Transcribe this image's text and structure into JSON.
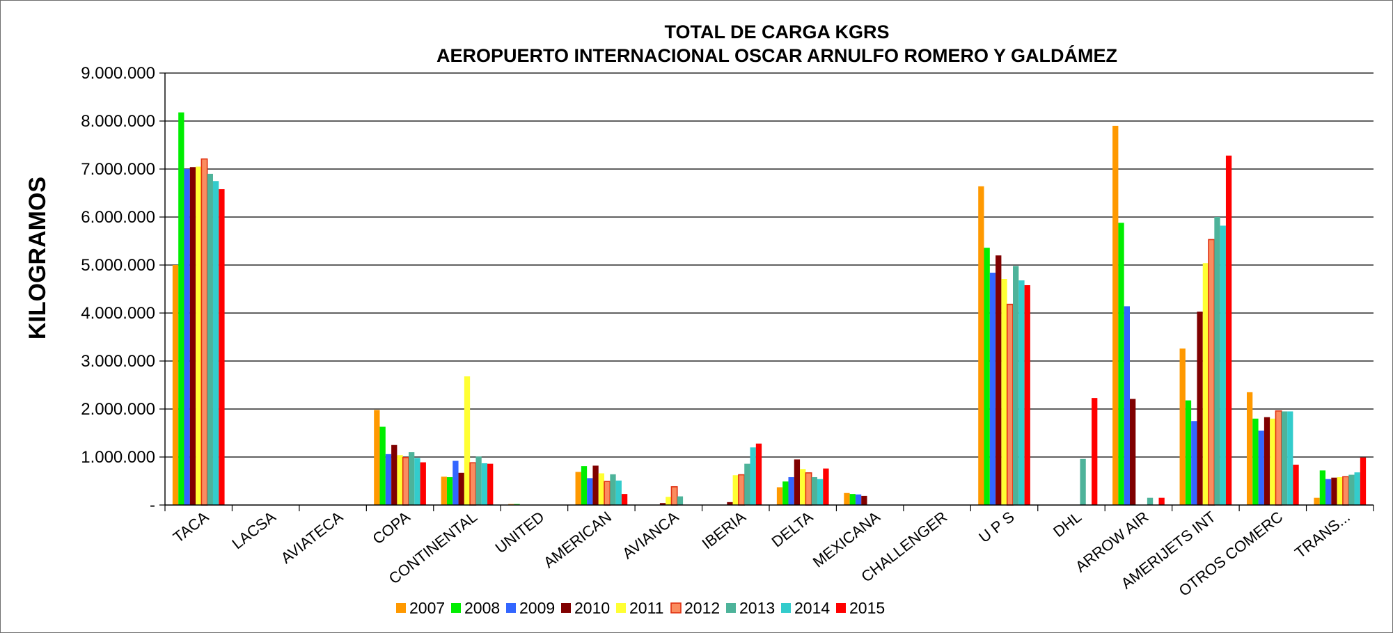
{
  "chart_data": {
    "type": "bar",
    "title": "TOTAL DE CARGA  KGRS",
    "subtitle": "AEROPUERTO INTERNACIONAL OSCAR ARNULFO ROMERO Y GALDÁMEZ",
    "xlabel": "",
    "ylabel": "KILOGRAMOS",
    "ylim": [
      0,
      9000000
    ],
    "yticks": [
      {
        "value": 0,
        "label": "-"
      },
      {
        "value": 1000000,
        "label": "1.000.000"
      },
      {
        "value": 2000000,
        "label": "2.000.000"
      },
      {
        "value": 3000000,
        "label": "3.000.000"
      },
      {
        "value": 4000000,
        "label": "4.000.000"
      },
      {
        "value": 5000000,
        "label": "5.000.000"
      },
      {
        "value": 6000000,
        "label": "6.000.000"
      },
      {
        "value": 7000000,
        "label": "7.000.000"
      },
      {
        "value": 8000000,
        "label": "8.000.000"
      },
      {
        "value": 9000000,
        "label": "9.000.000"
      }
    ],
    "grid": true,
    "legend_position": "bottom",
    "categories": [
      "TACA",
      "LACSA",
      "AVIATECA",
      "COPA",
      "CONTINENTAL",
      "UNITED",
      "AMERICAN",
      "AVIANCA",
      "IBERIA",
      "DELTA",
      "MEXICANA",
      "CHALLENGER",
      "U  P  S",
      "DHL",
      "ARROW  AIR",
      "AMERIJETS INT",
      "OTROS COMERC",
      "TRANS..."
    ],
    "series": [
      {
        "name": "2007",
        "color": "#ff9900",
        "values": [
          5000000,
          0,
          0,
          1980000,
          590000,
          20000,
          690000,
          0,
          0,
          370000,
          250000,
          0,
          6640000,
          0,
          7900000,
          3260000,
          2350000,
          150000
        ]
      },
      {
        "name": "2008",
        "color": "#00ee00",
        "values": [
          8180000,
          0,
          0,
          1630000,
          580000,
          20000,
          810000,
          0,
          0,
          490000,
          230000,
          0,
          5360000,
          0,
          5880000,
          2180000,
          1800000,
          720000
        ]
      },
      {
        "name": "2009",
        "color": "#3366ff",
        "values": [
          7000000,
          0,
          0,
          1060000,
          920000,
          0,
          560000,
          0,
          0,
          580000,
          220000,
          0,
          4840000,
          0,
          4140000,
          1750000,
          1550000,
          540000
        ]
      },
      {
        "name": "2010",
        "color": "#800000",
        "values": [
          7040000,
          0,
          0,
          1250000,
          670000,
          0,
          820000,
          40000,
          60000,
          950000,
          190000,
          0,
          5200000,
          0,
          2210000,
          4030000,
          1830000,
          570000
        ]
      },
      {
        "name": "2011",
        "color": "#ffff33",
        "values": [
          7050000,
          0,
          0,
          1040000,
          2680000,
          0,
          660000,
          170000,
          620000,
          750000,
          0,
          0,
          4710000,
          0,
          0,
          5040000,
          1800000,
          580000
        ]
      },
      {
        "name": "2012",
        "color": "#fb8c5f",
        "stroke": "#e03010",
        "values": [
          7210000,
          0,
          0,
          990000,
          880000,
          0,
          490000,
          380000,
          630000,
          670000,
          0,
          0,
          4180000,
          0,
          0,
          5530000,
          1960000,
          590000
        ]
      },
      {
        "name": "2013",
        "color": "#4db39a",
        "values": [
          6900000,
          0,
          0,
          1100000,
          1010000,
          0,
          640000,
          180000,
          860000,
          580000,
          0,
          0,
          4980000,
          960000,
          150000,
          6000000,
          1950000,
          630000
        ]
      },
      {
        "name": "2014",
        "color": "#33cccc",
        "values": [
          6750000,
          0,
          0,
          980000,
          870000,
          0,
          510000,
          0,
          1200000,
          540000,
          0,
          0,
          4680000,
          0,
          0,
          5820000,
          1950000,
          680000
        ]
      },
      {
        "name": "2015",
        "color": "#ff0000",
        "values": [
          6580000,
          0,
          0,
          890000,
          860000,
          0,
          230000,
          0,
          1280000,
          760000,
          0,
          0,
          4580000,
          2230000,
          150000,
          7280000,
          840000,
          990000
        ]
      }
    ]
  }
}
